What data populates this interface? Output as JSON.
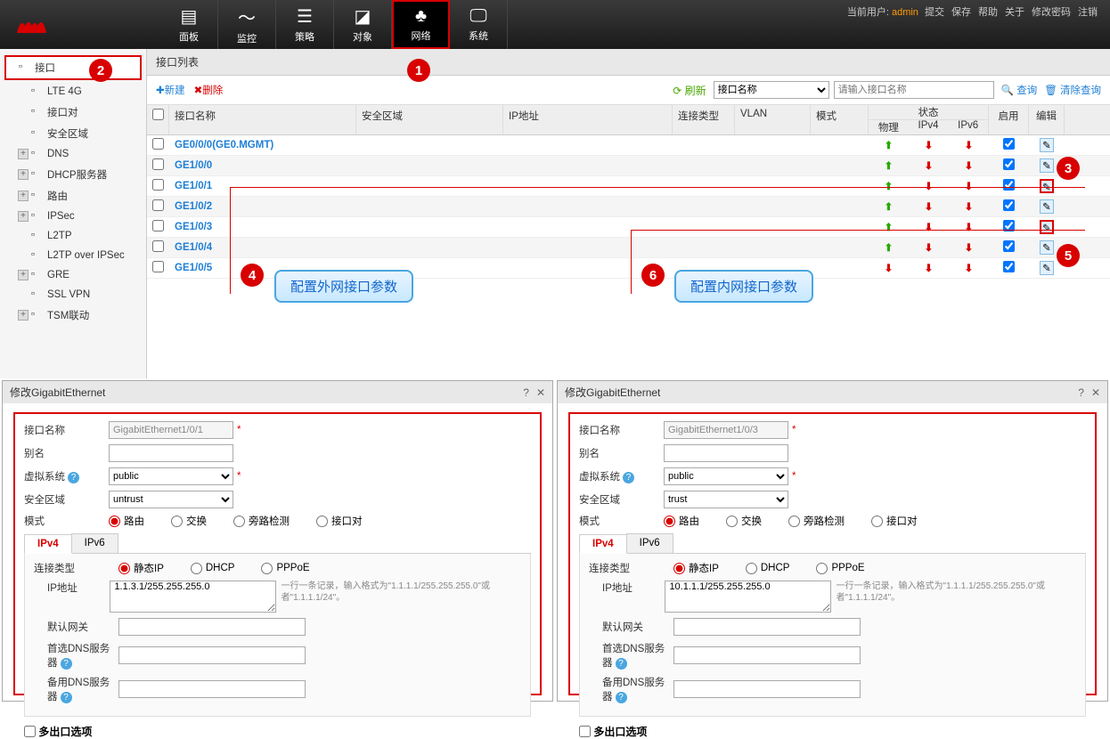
{
  "header": {
    "nav": [
      {
        "label": "面板",
        "icon": "▤"
      },
      {
        "label": "监控",
        "icon": "〜"
      },
      {
        "label": "策略",
        "icon": "☰"
      },
      {
        "label": "对象",
        "icon": "◪"
      },
      {
        "label": "网络",
        "icon": "♣",
        "active": true
      },
      {
        "label": "系统",
        "icon": "🖵"
      }
    ],
    "user_label": "当前用户:",
    "user_name": "admin",
    "links": [
      "提交",
      "保存",
      "帮助",
      "关于",
      "修改密码",
      "注销"
    ]
  },
  "sidebar": [
    {
      "label": "接口",
      "icon": "▦",
      "active": true
    },
    {
      "label": "LTE 4G",
      "indent": true
    },
    {
      "label": "接口对",
      "indent": true
    },
    {
      "label": "安全区域",
      "indent": true
    },
    {
      "label": "DNS",
      "expand": true
    },
    {
      "label": "DHCP服务器",
      "expand": true
    },
    {
      "label": "路由",
      "expand": true
    },
    {
      "label": "IPSec",
      "expand": true
    },
    {
      "label": "L2TP"
    },
    {
      "label": "L2TP over IPSec"
    },
    {
      "label": "GRE",
      "expand": true
    },
    {
      "label": "SSL VPN"
    },
    {
      "label": "TSM联动",
      "expand": true
    }
  ],
  "panel": {
    "title": "接口列表",
    "new_btn": "新建",
    "del_btn": "删除",
    "refresh": "刷新",
    "filter_field": "接口名称",
    "filter_placeholder": "请输入接口名称",
    "query_btn": "查询",
    "clear_btn": "清除查询"
  },
  "table": {
    "headers": {
      "name": "接口名称",
      "zone": "安全区域",
      "ip": "IP地址",
      "conn": "连接类型",
      "vlan": "VLAN",
      "mode": "模式",
      "status": "状态",
      "phy": "物理",
      "ipv4": "IPv4",
      "ipv6": "IPv6",
      "enable": "启用",
      "edit": "编辑"
    },
    "rows": [
      {
        "name": "GE0/0/0(GE0.MGMT)",
        "phy": "up",
        "ipv4": "down",
        "ipv6": "down",
        "enable": true
      },
      {
        "name": "GE1/0/0",
        "phy": "up",
        "ipv4": "down",
        "ipv6": "down",
        "enable": true
      },
      {
        "name": "GE1/0/1",
        "phy": "up",
        "ipv4": "down",
        "ipv6": "down",
        "enable": true,
        "hl": true
      },
      {
        "name": "GE1/0/2",
        "phy": "up",
        "ipv4": "down",
        "ipv6": "down",
        "enable": true
      },
      {
        "name": "GE1/0/3",
        "phy": "up",
        "ipv4": "down",
        "ipv6": "down",
        "enable": true,
        "hl": true
      },
      {
        "name": "GE1/0/4",
        "phy": "up",
        "ipv4": "down",
        "ipv6": "down",
        "enable": true
      },
      {
        "name": "GE1/0/5",
        "phy": "down",
        "ipv4": "down",
        "ipv6": "down",
        "enable": true
      }
    ]
  },
  "callouts": {
    "c1": "1",
    "c2": "2",
    "c3": "3",
    "c4": "4",
    "c5": "5",
    "c6": "6",
    "label_outer": "配置外网接口参数",
    "label_inner": "配置内网接口参数"
  },
  "config_left": {
    "title": "修改GigabitEthernet",
    "iface_name_label": "接口名称",
    "iface_name": "GigabitEthernet1/0/1",
    "alias_label": "别名",
    "vsys_label": "虚拟系统",
    "vsys": "public",
    "zone_label": "安全区域",
    "zone": "untrust",
    "mode_label": "模式",
    "mode_opts": [
      "路由",
      "交换",
      "旁路检测",
      "接口对"
    ],
    "mode_sel": 0,
    "tab_ipv4": "IPv4",
    "tab_ipv6": "IPv6",
    "conn_label": "连接类型",
    "conn_opts": [
      "静态IP",
      "DHCP",
      "PPPoE"
    ],
    "conn_sel": 0,
    "ip_label": "IP地址",
    "ip_value": "1.1.3.1/255.255.255.0",
    "ip_hint": "一行一条记录，输入格式为\"1.1.1.1/255.255.255.0\"或者\"1.1.1.1/24\"。",
    "gw_label": "默认网关",
    "dns1_label": "首选DNS服务器",
    "dns2_label": "备用DNS服务器",
    "multi_exit": "多出口选项"
  },
  "config_right": {
    "title": "修改GigabitEthernet",
    "iface_name": "GigabitEthernet1/0/3",
    "zone": "trust",
    "ip_value": "10.1.1.1/255.255.255.0"
  },
  "colors": {
    "accent_red": "#d80000",
    "link_blue": "#1e7fd6",
    "up_green": "#2aa800",
    "callout_blue": "#4aa6e0"
  }
}
